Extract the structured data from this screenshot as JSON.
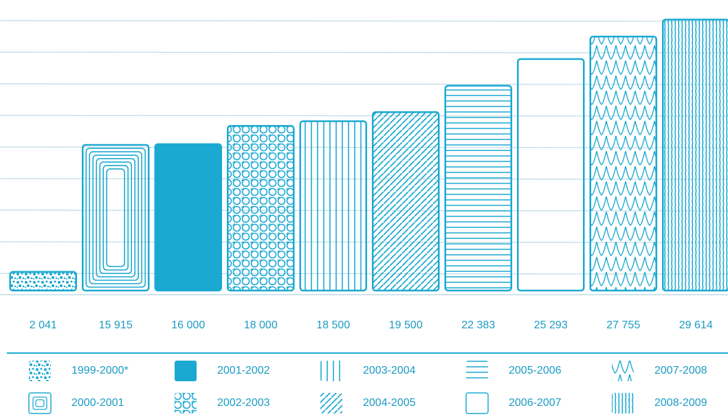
{
  "colors": {
    "ink": "#1ba9d1",
    "text": "#1a9bc4",
    "grid": "#bfdce6"
  },
  "chart_data": {
    "type": "bar",
    "title": "",
    "xlabel": "",
    "ylabel": "",
    "ylim": [
      0,
      31000
    ],
    "grid": true,
    "categories": [
      "1999-2000*",
      "2000-2001",
      "2001-2002",
      "2002-2003",
      "2003-2004",
      "2004-2005",
      "2005-2006",
      "2006-2007",
      "2007-2008",
      "2008-2009"
    ],
    "values": [
      2041,
      15915,
      16000,
      18000,
      18500,
      19500,
      22383,
      25293,
      27755,
      29614
    ],
    "value_labels": [
      "2 041",
      "15 915",
      "16 000",
      "18 000",
      "18 500",
      "19 500",
      "22 383",
      "25 293",
      "27 755",
      "29 614"
    ],
    "patterns": [
      "speckle",
      "concentric",
      "solid",
      "cells",
      "vertical-lines",
      "diagonal",
      "horizontal-lines",
      "blank",
      "scales",
      "dense-vertical"
    ],
    "legend_placement": "bottom"
  },
  "legend": [
    {
      "label": "1999-2000*",
      "pattern": "speckle"
    },
    {
      "label": "2001-2002",
      "pattern": "solid"
    },
    {
      "label": "2003-2004",
      "pattern": "vertical-lines"
    },
    {
      "label": "2005-2006",
      "pattern": "horizontal-lines"
    },
    {
      "label": "2007-2008",
      "pattern": "scales"
    },
    {
      "label": "2000-2001",
      "pattern": "concentric"
    },
    {
      "label": "2002-2003",
      "pattern": "cells"
    },
    {
      "label": "2004-2005",
      "pattern": "diagonal"
    },
    {
      "label": "2006-2007",
      "pattern": "blank"
    },
    {
      "label": "2008-2009",
      "pattern": "dense-vertical"
    }
  ]
}
